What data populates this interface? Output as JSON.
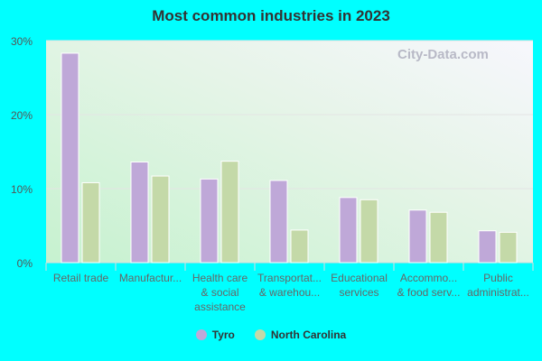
{
  "chart_data": {
    "type": "bar",
    "title": "Most common industries in 2023",
    "categories": [
      [
        "Retail trade"
      ],
      [
        "Manufactur..."
      ],
      [
        "Health care",
        "& social",
        "assistance"
      ],
      [
        "Transportat...",
        "& warehou..."
      ],
      [
        "Educational",
        "services"
      ],
      [
        "Accommo...",
        "& food serv..."
      ],
      [
        "Public",
        "administrat..."
      ]
    ],
    "series": [
      {
        "name": "Tyro",
        "color": "#bfa8d8",
        "values": [
          28.3,
          13.6,
          11.3,
          11.1,
          8.8,
          7.1,
          4.3
        ]
      },
      {
        "name": "North Carolina",
        "color": "#c4d9a8",
        "values": [
          10.8,
          11.7,
          13.7,
          4.4,
          8.5,
          6.8,
          4.1
        ]
      }
    ],
    "ylim": [
      0,
      30
    ],
    "yticks": [
      "0%",
      "10%",
      "20%",
      "30%"
    ],
    "grid": true,
    "legend": "bottom",
    "watermark": "City-Data.com"
  }
}
